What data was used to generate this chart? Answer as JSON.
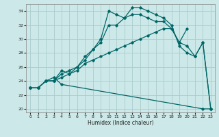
{
  "xlabel": "Humidex (Indice chaleur)",
  "bg_color": "#cce8e8",
  "line_color": "#006666",
  "grid_color": "#aacccc",
  "xlim": [
    -0.5,
    23.5
  ],
  "ylim": [
    19.5,
    35.0
  ],
  "xticks": [
    0,
    1,
    2,
    3,
    4,
    5,
    6,
    7,
    8,
    9,
    10,
    11,
    12,
    13,
    14,
    15,
    16,
    17,
    18,
    19,
    20,
    21,
    22,
    23
  ],
  "yticks": [
    20,
    22,
    24,
    26,
    28,
    30,
    32,
    34
  ],
  "lines": [
    {
      "x": [
        0,
        1,
        2,
        3,
        4,
        5,
        6,
        7,
        8,
        9,
        10,
        11,
        12,
        13,
        14,
        15,
        16,
        17,
        18,
        19,
        20,
        21,
        22,
        23
      ],
      "y": [
        23,
        23,
        24,
        24,
        25,
        25.5,
        26,
        27.5,
        28.5,
        30,
        34,
        33.5,
        33,
        34.5,
        34.5,
        34,
        33.5,
        33,
        32,
        29,
        28,
        27.5,
        29.5,
        20
      ]
    },
    {
      "x": [
        0,
        1,
        2,
        3,
        4,
        5,
        6,
        7,
        8,
        9,
        10,
        11,
        12,
        13,
        14,
        15,
        16,
        17,
        18,
        19,
        20,
        21,
        22,
        23
      ],
      "y": [
        23,
        23,
        24,
        24,
        24.5,
        25,
        26,
        27,
        28.5,
        29.5,
        32,
        32,
        33,
        33.5,
        33.5,
        33,
        32.5,
        32.5,
        31.5,
        29.5,
        29,
        27.5,
        29.5,
        20
      ]
    },
    {
      "x": [
        0,
        1,
        2,
        3,
        4,
        5,
        6,
        7,
        8,
        9,
        10,
        11,
        12,
        13,
        14,
        15,
        16,
        17,
        18,
        19,
        20
      ],
      "y": [
        23,
        23,
        24,
        24,
        25.5,
        25,
        25.5,
        26.5,
        27,
        27.5,
        28,
        28.5,
        29,
        29.5,
        30,
        30.5,
        31,
        31.5,
        31.5,
        29.5,
        31.5
      ]
    },
    {
      "x": [
        0,
        1,
        2,
        3,
        4,
        22,
        23
      ],
      "y": [
        23,
        23,
        24,
        24.5,
        23.5,
        20,
        20
      ]
    }
  ]
}
